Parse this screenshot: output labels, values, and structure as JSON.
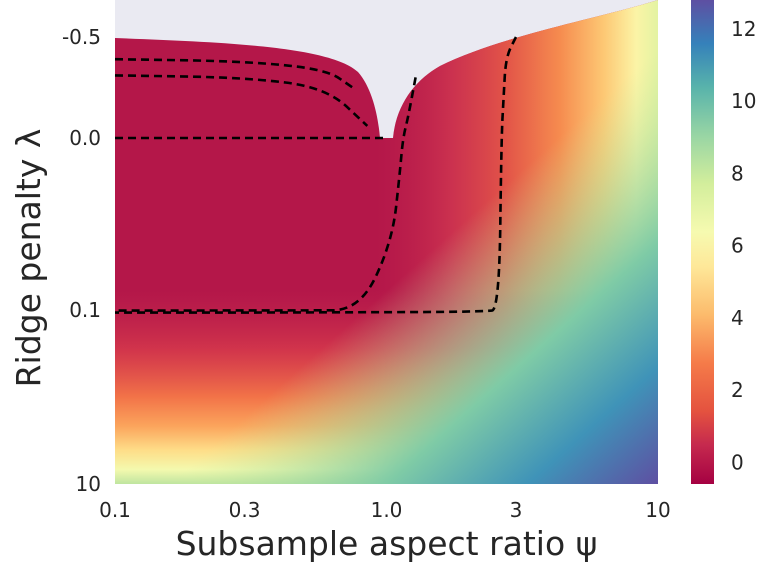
{
  "chart_data": {
    "type": "heatmap",
    "title": "",
    "xlabel": "Subsample aspect ratio ψ",
    "ylabel": "Ridge penalty λ",
    "x_scale": "log",
    "x_range": [
      0.1,
      10
    ],
    "x_ticks": [
      {
        "value": 0.1,
        "label": "0.1"
      },
      {
        "value": 0.3,
        "label": "0.3"
      },
      {
        "value": 1.0,
        "label": "1.0"
      },
      {
        "value": 3,
        "label": "3"
      },
      {
        "value": 10,
        "label": "10"
      }
    ],
    "y_scale": "symlog",
    "y_range": [
      -0.6,
      10
    ],
    "y_ticks": [
      {
        "value": -0.5,
        "label": "-0.5"
      },
      {
        "value": 0.0,
        "label": "0.0"
      },
      {
        "value": 0.1,
        "label": "0.1"
      },
      {
        "value": 10,
        "label": "10"
      }
    ],
    "colorbar": {
      "colormap": "Spectral",
      "range": [
        -0.6,
        12.8
      ],
      "ticks": [
        {
          "value": 0,
          "label": "0"
        },
        {
          "value": 2,
          "label": "2"
        },
        {
          "value": 4,
          "label": "4"
        },
        {
          "value": 6,
          "label": "6"
        },
        {
          "value": 8,
          "label": "8"
        },
        {
          "value": 10,
          "label": "10"
        },
        {
          "value": 12,
          "label": "12"
        }
      ]
    },
    "grid": false,
    "background_color": "#eaeaf2",
    "contour_style": "black dashed",
    "contour_lines": [
      {
        "points": [
          [
            0.1,
            -0.39
          ],
          [
            0.3,
            -0.38
          ],
          [
            0.6,
            -0.34
          ],
          [
            0.75,
            -0.25
          ]
        ]
      },
      {
        "points": [
          [
            0.1,
            -0.31
          ],
          [
            0.3,
            -0.3
          ],
          [
            0.6,
            -0.25
          ],
          [
            0.85,
            -0.06
          ]
        ]
      },
      {
        "points": [
          [
            0.1,
            0.0
          ],
          [
            1.0,
            0.0
          ]
        ]
      },
      {
        "points": [
          [
            1.28,
            -0.3
          ],
          [
            1.2,
            -0.1
          ],
          [
            1.15,
            0.0
          ],
          [
            1.12,
            0.02
          ],
          [
            1.05,
            0.06
          ],
          [
            0.8,
            0.11
          ],
          [
            0.5,
            0.125
          ],
          [
            0.1,
            0.135
          ]
        ]
      },
      {
        "points": [
          [
            3.0,
            -0.5
          ],
          [
            2.75,
            -0.4
          ],
          [
            2.7,
            -0.2
          ],
          [
            2.65,
            0.0
          ],
          [
            2.6,
            0.1
          ],
          [
            2.3,
            0.17
          ],
          [
            1.5,
            0.22
          ],
          [
            0.3,
            0.246
          ],
          [
            0.1,
            0.25
          ]
        ]
      }
    ]
  }
}
